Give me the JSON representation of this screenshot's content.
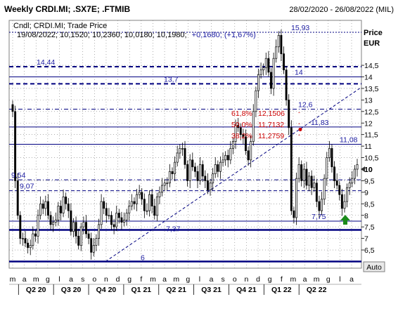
{
  "header": {
    "title": "Weekly CRDI.MI; .SX7E; .FTMIB",
    "date_range": "28/02/2020 - 26/08/2022 (MIL)"
  },
  "legend": {
    "line1": "Cndl; CRDI.MI; Trade Price",
    "line2_prefix": "19/08/2022; 10,1520; 10,2360; 10,0180; 10,1980;",
    "line2_change": "+0,1680; (+1,67%)"
  },
  "axis": {
    "title_line1": "Price",
    "title_line2": "EUR",
    "y_ticks": [
      6.5,
      7,
      7.5,
      8,
      8.5,
      9,
      9.5,
      10,
      10.5,
      11,
      11.5,
      12,
      12.5,
      13,
      13.5,
      14,
      14.5
    ],
    "y_tick_labels": [
      "6,5",
      "7",
      "7,5",
      "8",
      "8,5",
      "9",
      "9,5",
      "10",
      "10,5",
      "11",
      "11,5",
      "12",
      "12,5",
      "13",
      "13,5",
      "14",
      "14,5"
    ],
    "last_price": 10,
    "last_price_label": "10",
    "ylim": [
      6,
      16
    ],
    "auto_label": "Auto"
  },
  "x_months": [
    "m",
    "a",
    "m",
    "g",
    "l",
    "a",
    "s",
    "o",
    "n",
    "d",
    "g",
    "f",
    "m",
    "a",
    "m",
    "g",
    "l",
    "a",
    "s",
    "o",
    "n",
    "d",
    "g",
    "f",
    "m",
    "a",
    "m",
    "g",
    "l",
    "a"
  ],
  "x_quarters": [
    "Q2 20",
    "Q3 20",
    "Q4 20",
    "Q1 21",
    "Q2 21",
    "Q3 21",
    "Q4 21",
    "Q1 22",
    "Q2 22"
  ],
  "colors": {
    "level_line": "#000080",
    "fib_text": "#cc0000",
    "arrow": "#1a8a1a",
    "label_text": "#1a1aa0",
    "grid": "#7a7a7a",
    "frame": "#808080"
  },
  "levels": [
    {
      "value": 15.93,
      "label": "15,93",
      "style": "dotted"
    },
    {
      "value": 14.44,
      "label": "14,44",
      "style": "dash-thick"
    },
    {
      "value": 14.0,
      "label": "14",
      "style": "solid"
    },
    {
      "value": 13.7,
      "label": "13,7",
      "style": "dash-thick"
    },
    {
      "value": 12.6,
      "label": "12,6",
      "style": "dashdot"
    },
    {
      "value": 11.83,
      "label": "11,83",
      "style": "solid"
    },
    {
      "value": 11.08,
      "label": "11,08",
      "style": "solid"
    },
    {
      "value": 9.54,
      "label": "9,54",
      "style": "dashdot"
    },
    {
      "value": 9.07,
      "label": "9,07",
      "style": "dash"
    },
    {
      "value": 7.75,
      "label": "7,75",
      "style": "solid"
    },
    {
      "value": 7.37,
      "label": "7,37",
      "style": "solid-thick"
    },
    {
      "value": 6.0,
      "label": "6",
      "style": "solid-thick"
    }
  ],
  "fibonacci": [
    {
      "label": "61,8%",
      "value_label": "12,1506",
      "value": 12.15
    },
    {
      "label": "50,0%",
      "value_label": "11,7132",
      "value": 11.71
    },
    {
      "label": "38,2%",
      "value_label": "11,2759",
      "value": 11.28
    }
  ],
  "chart_data": {
    "type": "candlestick",
    "title": "Weekly CRDI.MI; .SX7E; .FTMIB",
    "xlabel": "",
    "ylabel": "Price EUR",
    "x_range": [
      "28/02/2020",
      "26/08/2022"
    ],
    "ylim": [
      6,
      16
    ],
    "grid": true,
    "close_approx": [
      12.5,
      9.5,
      8.0,
      7.0,
      7.0,
      6.8,
      6.6,
      6.7,
      7.2,
      7.1,
      8.0,
      8.5,
      8.3,
      8.6,
      8.0,
      7.6,
      7.7,
      7.8,
      8.4,
      8.1,
      8.8,
      8.5,
      8.2,
      7.3,
      7.7,
      7.1,
      6.7,
      7.5,
      7.7,
      7.2,
      7.0,
      6.4,
      6.7,
      7.0,
      7.6,
      8.6,
      8.3,
      8.0,
      8.0,
      7.6,
      7.5,
      8.1,
      7.9,
      7.7,
      7.8,
      8.1,
      8.4,
      8.6,
      8.5,
      8.9,
      9.0,
      8.7,
      8.2,
      8.2,
      8.9,
      8.4,
      8.0,
      8.8,
      9.0,
      9.3,
      9.4,
      9.4,
      9.9,
      9.8,
      10.3,
      10.7,
      10.9,
      10.9,
      10.2,
      9.5,
      10.4,
      10.1,
      9.9,
      9.5,
      10.2,
      9.7,
      9.5,
      9.1,
      9.4,
      9.8,
      10.2,
      9.9,
      10.3,
      10.4,
      10.6,
      10.4,
      10.9,
      11.2,
      11.9,
      11.8,
      11.5,
      11.4,
      10.8,
      10.4,
      11.2,
      12.5,
      13.4,
      14.1,
      14.3,
      14.4,
      14.8,
      14.2,
      13.5,
      14.8,
      15.3,
      15.8,
      15.0,
      14.3,
      13.0,
      11.8,
      8.2,
      7.9,
      9.6,
      10.2,
      9.5,
      10.0,
      9.3,
      9.7,
      9.2,
      9.4,
      8.6,
      8.2,
      8.7,
      9.6,
      10.5,
      10.9,
      10.1,
      9.5,
      9.3,
      8.9,
      8.3,
      8.6,
      9.2,
      9.4,
      9.6,
      10.0,
      10.2
    ],
    "annotations": [
      "61,8% 12,1506",
      "50,0% 11,7132",
      "38,2% 11,2759"
    ]
  }
}
